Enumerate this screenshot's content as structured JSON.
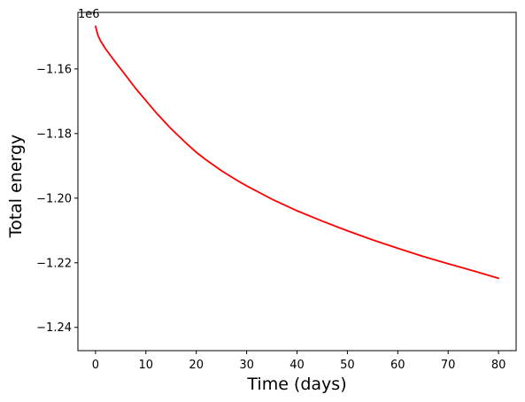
{
  "chart_data": {
    "type": "line",
    "title": "",
    "xlabel": "Time (days)",
    "ylabel": "Total energy",
    "y_offset_text": "1e6",
    "xlim": [
      -3.5,
      83.5
    ],
    "ylim": [
      -1.2472,
      -1.1425
    ],
    "x_ticks": [
      0,
      10,
      20,
      30,
      40,
      50,
      60,
      70,
      80
    ],
    "x_tick_labels": [
      "0",
      "10",
      "20",
      "30",
      "40",
      "50",
      "60",
      "70",
      "80"
    ],
    "y_ticks": [
      -1.16,
      -1.18,
      -1.2,
      -1.22,
      -1.24
    ],
    "y_tick_labels": [
      "−1.16",
      "−1.18",
      "−1.20",
      "−1.22",
      "−1.24"
    ],
    "grid": false,
    "series": [
      {
        "color": "#ff0000",
        "x": [
          0,
          0.5,
          1,
          2,
          3,
          4,
          5,
          6,
          8,
          10,
          12,
          15,
          18,
          20,
          22,
          25,
          28,
          30,
          35,
          40,
          45,
          50,
          55,
          60,
          65,
          70,
          75,
          80
        ],
        "y": [
          -1.1468,
          -1.1497,
          -1.1513,
          -1.1538,
          -1.1559,
          -1.158,
          -1.16,
          -1.162,
          -1.1661,
          -1.1698,
          -1.1735,
          -1.1785,
          -1.183,
          -1.1858,
          -1.1882,
          -1.1915,
          -1.1944,
          -1.1962,
          -1.2003,
          -1.2039,
          -1.2071,
          -1.2101,
          -1.2129,
          -1.2155,
          -1.218,
          -1.2203,
          -1.2225,
          -1.2248
        ]
      }
    ]
  }
}
